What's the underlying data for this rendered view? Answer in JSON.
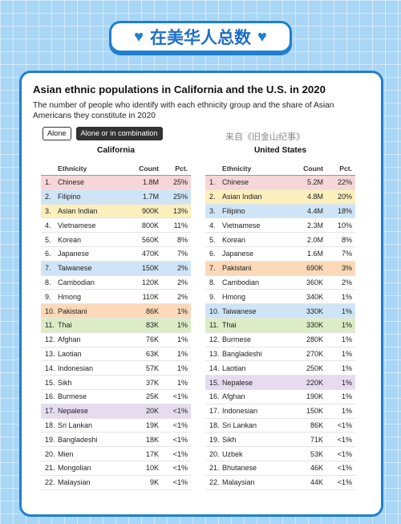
{
  "banner": {
    "text": "在美华人总数",
    "icon_left": "heart-icon",
    "icon_right": "heart-icon"
  },
  "title": "Asian ethnic populations in California and the U.S. in 2020",
  "subtitle": "The number of people who identify with each ethnicity group and the share of Asian Americans they constitute in 2020",
  "toggles": [
    {
      "label": "Alone",
      "active": false
    },
    {
      "label": "Alone or in combination",
      "active": true
    }
  ],
  "watermark": "来自《旧金山纪事》",
  "colors": {
    "pink": "#f6d6d8",
    "blue": "#cfe5f7",
    "yellow": "#fbefbd",
    "orange": "#fbd9b8",
    "green": "#dcedc6",
    "purple": "#e6dcef",
    "accent": "#1f7fd1"
  },
  "columns": {
    "ethnicity": "Ethnicity",
    "count": "Count",
    "pct": "Pct."
  },
  "california": {
    "heading": "California",
    "rows": [
      {
        "rank": "1.",
        "ethnicity": "Chinese",
        "count": "1.8M",
        "pct": "25%",
        "hl": "pink"
      },
      {
        "rank": "2.",
        "ethnicity": "Filipino",
        "count": "1.7M",
        "pct": "25%",
        "hl": "blue"
      },
      {
        "rank": "3.",
        "ethnicity": "Asian Indian",
        "count": "900K",
        "pct": "13%",
        "hl": "yellow"
      },
      {
        "rank": "4.",
        "ethnicity": "Vietnamese",
        "count": "800K",
        "pct": "11%",
        "hl": ""
      },
      {
        "rank": "5.",
        "ethnicity": "Korean",
        "count": "560K",
        "pct": "8%",
        "hl": ""
      },
      {
        "rank": "6.",
        "ethnicity": "Japanese",
        "count": "470K",
        "pct": "7%",
        "hl": ""
      },
      {
        "rank": "7.",
        "ethnicity": "Taiwanese",
        "count": "150K",
        "pct": "2%",
        "hl": "blue"
      },
      {
        "rank": "8.",
        "ethnicity": "Cambodian",
        "count": "120K",
        "pct": "2%",
        "hl": ""
      },
      {
        "rank": "9.",
        "ethnicity": "Hmong",
        "count": "110K",
        "pct": "2%",
        "hl": ""
      },
      {
        "rank": "10.",
        "ethnicity": "Pakistani",
        "count": "86K",
        "pct": "1%",
        "hl": "orange"
      },
      {
        "rank": "11.",
        "ethnicity": "Thai",
        "count": "83K",
        "pct": "1%",
        "hl": "green"
      },
      {
        "rank": "12.",
        "ethnicity": "Afghan",
        "count": "76K",
        "pct": "1%",
        "hl": ""
      },
      {
        "rank": "13.",
        "ethnicity": "Laotian",
        "count": "63K",
        "pct": "1%",
        "hl": ""
      },
      {
        "rank": "14.",
        "ethnicity": "Indonesian",
        "count": "57K",
        "pct": "1%",
        "hl": ""
      },
      {
        "rank": "15.",
        "ethnicity": "Sikh",
        "count": "37K",
        "pct": "1%",
        "hl": ""
      },
      {
        "rank": "16.",
        "ethnicity": "Burmese",
        "count": "25K",
        "pct": "<1%",
        "hl": ""
      },
      {
        "rank": "17.",
        "ethnicity": "Nepalese",
        "count": "20K",
        "pct": "<1%",
        "hl": "purple"
      },
      {
        "rank": "18.",
        "ethnicity": "Sri Lankan",
        "count": "19K",
        "pct": "<1%",
        "hl": ""
      },
      {
        "rank": "19.",
        "ethnicity": "Bangladeshi",
        "count": "18K",
        "pct": "<1%",
        "hl": ""
      },
      {
        "rank": "20.",
        "ethnicity": "Mien",
        "count": "17K",
        "pct": "<1%",
        "hl": ""
      },
      {
        "rank": "21.",
        "ethnicity": "Mongolian",
        "count": "10K",
        "pct": "<1%",
        "hl": ""
      },
      {
        "rank": "22.",
        "ethnicity": "Malaysian",
        "count": "9K",
        "pct": "<1%",
        "hl": ""
      }
    ]
  },
  "us": {
    "heading": "United States",
    "rows": [
      {
        "rank": "1.",
        "ethnicity": "Chinese",
        "count": "5.2M",
        "pct": "22%",
        "hl": "pink"
      },
      {
        "rank": "2.",
        "ethnicity": "Asian Indian",
        "count": "4.8M",
        "pct": "20%",
        "hl": "yellow"
      },
      {
        "rank": "3.",
        "ethnicity": "Filipino",
        "count": "4.4M",
        "pct": "18%",
        "hl": "blue"
      },
      {
        "rank": "4.",
        "ethnicity": "Vietnamese",
        "count": "2.3M",
        "pct": "10%",
        "hl": ""
      },
      {
        "rank": "5.",
        "ethnicity": "Korean",
        "count": "2.0M",
        "pct": "8%",
        "hl": ""
      },
      {
        "rank": "6.",
        "ethnicity": "Japanese",
        "count": "1.6M",
        "pct": "7%",
        "hl": ""
      },
      {
        "rank": "7.",
        "ethnicity": "Pakistani",
        "count": "690K",
        "pct": "3%",
        "hl": "orange"
      },
      {
        "rank": "8.",
        "ethnicity": "Cambodian",
        "count": "360K",
        "pct": "2%",
        "hl": ""
      },
      {
        "rank": "9.",
        "ethnicity": "Hmong",
        "count": "340K",
        "pct": "1%",
        "hl": ""
      },
      {
        "rank": "10.",
        "ethnicity": "Taiwanese",
        "count": "330K",
        "pct": "1%",
        "hl": "blue"
      },
      {
        "rank": "11.",
        "ethnicity": "Thai",
        "count": "330K",
        "pct": "1%",
        "hl": "green"
      },
      {
        "rank": "12.",
        "ethnicity": "Burmese",
        "count": "280K",
        "pct": "1%",
        "hl": ""
      },
      {
        "rank": "13.",
        "ethnicity": "Bangladeshi",
        "count": "270K",
        "pct": "1%",
        "hl": ""
      },
      {
        "rank": "14.",
        "ethnicity": "Laotian",
        "count": "250K",
        "pct": "1%",
        "hl": ""
      },
      {
        "rank": "15.",
        "ethnicity": "Nepalese",
        "count": "220K",
        "pct": "1%",
        "hl": "purple"
      },
      {
        "rank": "16.",
        "ethnicity": "Afghan",
        "count": "190K",
        "pct": "1%",
        "hl": ""
      },
      {
        "rank": "17.",
        "ethnicity": "Indonesian",
        "count": "150K",
        "pct": "1%",
        "hl": ""
      },
      {
        "rank": "18.",
        "ethnicity": "Sri Lankan",
        "count": "86K",
        "pct": "<1%",
        "hl": ""
      },
      {
        "rank": "19.",
        "ethnicity": "Sikh",
        "count": "71K",
        "pct": "<1%",
        "hl": ""
      },
      {
        "rank": "20.",
        "ethnicity": "Uzbek",
        "count": "53K",
        "pct": "<1%",
        "hl": ""
      },
      {
        "rank": "21.",
        "ethnicity": "Bhutanese",
        "count": "46K",
        "pct": "<1%",
        "hl": ""
      },
      {
        "rank": "22.",
        "ethnicity": "Malaysian",
        "count": "44K",
        "pct": "<1%",
        "hl": ""
      }
    ]
  }
}
